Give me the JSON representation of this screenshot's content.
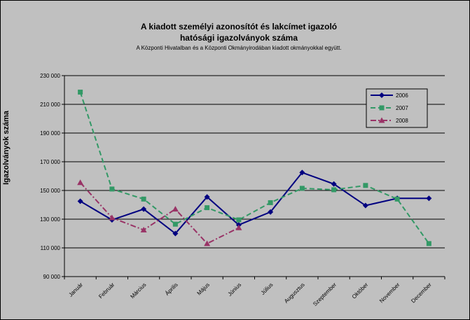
{
  "chart_data": {
    "type": "line",
    "title_lines": [
      "A kiadott személyi azonosítót és lakcímet igazoló",
      "hatósági igazolványok száma"
    ],
    "subtitle": "A Központi Hivatalban és a Központi Okmányirodában kiadott okmányokkal együtt.",
    "xlabel": "",
    "ylabel": "Igazolványok száma",
    "ylim": [
      90000,
      230000
    ],
    "y_ticks": [
      {
        "value": 90000,
        "label": "90 000"
      },
      {
        "value": 110000,
        "label": "110 000"
      },
      {
        "value": 130000,
        "label": "130 000"
      },
      {
        "value": 150000,
        "label": "150 000"
      },
      {
        "value": 170000,
        "label": "170 000"
      },
      {
        "value": 190000,
        "label": "190 000"
      },
      {
        "value": 210000,
        "label": "210 000"
      },
      {
        "value": 230000,
        "label": "230 000"
      }
    ],
    "categories": [
      "Január",
      "Február",
      "Március",
      "Április",
      "Május",
      "Június",
      "Július",
      "Augusztus",
      "Szeptember",
      "Október",
      "November",
      "December"
    ],
    "grid": true,
    "legend_position": "top-right",
    "series": [
      {
        "name": "2006",
        "color": "#000080",
        "marker": "diamond",
        "dash": "solid",
        "values": [
          142500,
          129500,
          137000,
          120000,
          145500,
          126000,
          135000,
          162500,
          154500,
          139500,
          144500,
          144500
        ]
      },
      {
        "name": "2007",
        "color": "#339966",
        "marker": "square",
        "dash": "dashed",
        "values": [
          218500,
          151000,
          144000,
          126500,
          138000,
          129500,
          141500,
          151500,
          150500,
          153500,
          144000,
          113000
        ]
      },
      {
        "name": "2008",
        "color": "#993366",
        "marker": "triangle",
        "dash": "dashdot",
        "values": [
          155500,
          131000,
          122500,
          137000,
          113000,
          124000,
          null,
          null,
          null,
          null,
          null,
          null
        ]
      }
    ]
  }
}
